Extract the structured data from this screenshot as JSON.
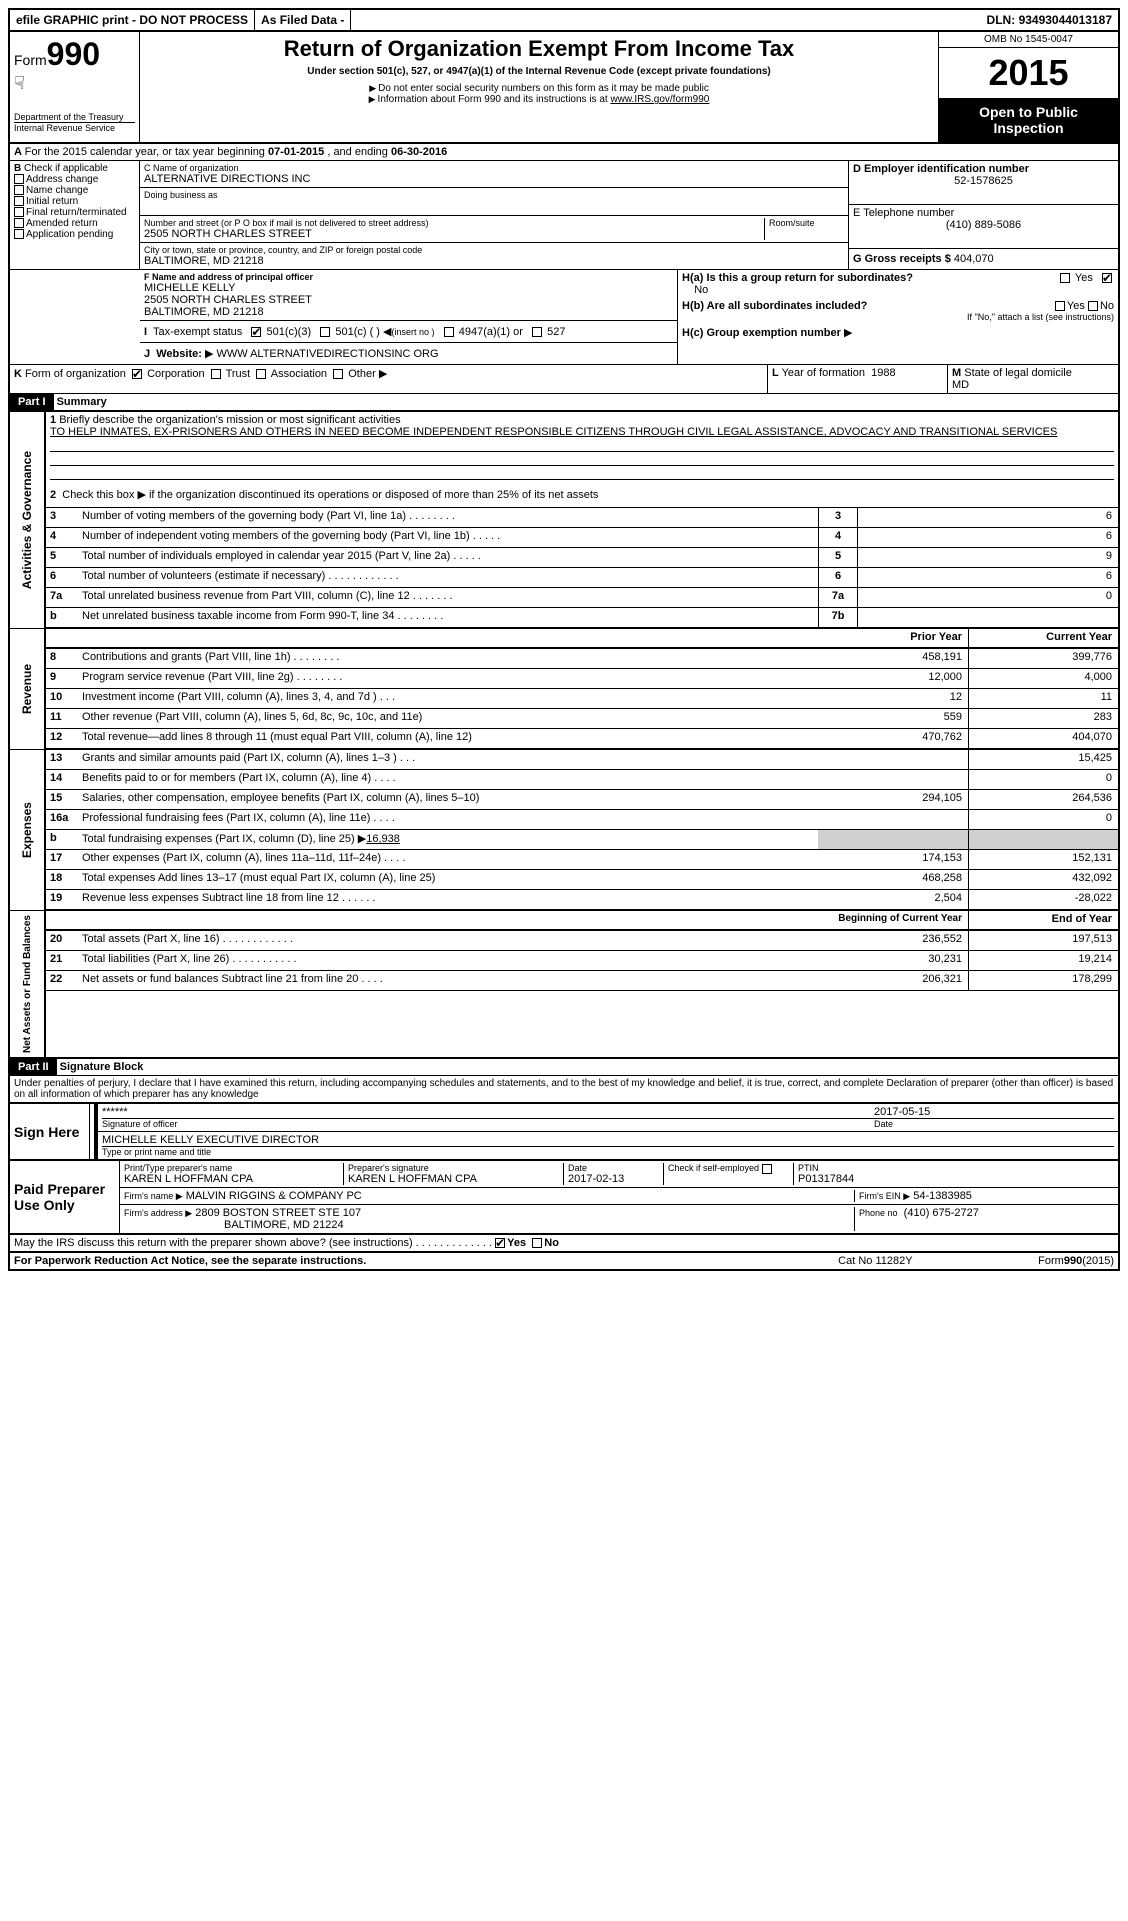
{
  "topbar": {
    "efile": "efile GRAPHIC print - DO NOT PROCESS",
    "asfiled": "As Filed Data -",
    "dln_label": "DLN:",
    "dln": "93493044013187"
  },
  "header": {
    "form_label": "Form",
    "form_number": "990",
    "dept": "Department of the Treasury",
    "irs": "Internal Revenue Service",
    "title": "Return of Organization Exempt From Income Tax",
    "subtitle": "Under section 501(c), 527, or 4947(a)(1) of the Internal Revenue Code (except private foundations)",
    "note1": "Do not enter social security numbers on this form as it may be made public",
    "note2_pre": "Information about Form 990 and its instructions is at ",
    "note2_link": "www.IRS.gov/form990",
    "omb": "OMB No 1545-0047",
    "year": "2015",
    "inspect1": "Open to Public",
    "inspect2": "Inspection"
  },
  "lineA": {
    "prefix": "A",
    "text1": "For the 2015 calendar year, or tax year beginning ",
    "begin": "07-01-2015",
    "text2": ", and ending ",
    "end": "06-30-2016"
  },
  "boxB": {
    "label": "B",
    "check": "Check if applicable",
    "addr": "Address change",
    "name": "Name change",
    "initial": "Initial return",
    "final": "Final return/terminated",
    "amended": "Amended return",
    "pending": "Application pending"
  },
  "boxC": {
    "name_label": "C Name of organization",
    "name": "ALTERNATIVE DIRECTIONS INC",
    "dba_label": "Doing business as",
    "street_label": "Number and street (or P O box if mail is not delivered to street address)",
    "room_label": "Room/suite",
    "street": "2505 NORTH CHARLES STREET",
    "city_label": "City or town, state or province, country, and ZIP or foreign postal code",
    "city": "BALTIMORE, MD  21218"
  },
  "boxD": {
    "label": "D Employer identification number",
    "value": "52-1578625"
  },
  "boxE": {
    "label": "E Telephone number",
    "value": "(410) 889-5086"
  },
  "boxG": {
    "label": "G Gross receipts $",
    "value": "404,070"
  },
  "boxF": {
    "label": "F  Name and address of principal officer",
    "name": "MICHELLE KELLY",
    "street": "2505 NORTH CHARLES STREET",
    "city": "BALTIMORE, MD  21218"
  },
  "boxH": {
    "ha": "H(a)  Is this a group return for subordinates?",
    "ha_no": "No",
    "yes": "Yes",
    "no": "No",
    "hb": "H(b)  Are all subordinates included?",
    "hb_note": "If \"No,\" attach a list  (see instructions)",
    "hc": "H(c)  Group exemption number"
  },
  "lineI": {
    "label": "I",
    "text": "Tax-exempt status",
    "c3": "501(c)(3)",
    "c": "501(c) (   )",
    "insert": "(insert no )",
    "a1": "4947(a)(1) or",
    "s527": "527"
  },
  "lineJ": {
    "label": "J",
    "text": "Website:",
    "value": "WWW ALTERNATIVEDIRECTIONSINC ORG"
  },
  "lineK": {
    "label": "K",
    "text": "Form of organization",
    "corp": "Corporation",
    "trust": "Trust",
    "assoc": "Association",
    "other": "Other"
  },
  "lineL": {
    "label": "L",
    "text": "Year of formation",
    "value": "1988"
  },
  "lineM": {
    "label": "M",
    "text": "State of legal domicile",
    "value": "MD"
  },
  "partI": {
    "header": "Part I",
    "title": "Summary"
  },
  "summary": {
    "activities_label": "Activities & Governance",
    "revenue_label": "Revenue",
    "expenses_label": "Expenses",
    "netassets_label": "Net Assets or Fund Balances",
    "line1_label": "1",
    "line1_text": "Briefly describe the organization's mission or most significant activities",
    "line1_value": "TO HELP INMATES, EX-PRISONERS AND OTHERS IN NEED BECOME INDEPENDENT RESPONSIBLE CITIZENS THROUGH CIVIL LEGAL ASSISTANCE, ADVOCACY AND TRANSITIONAL SERVICES",
    "line2_text": "Check this box ▶      if the organization discontinued its operations or disposed of more than 25% of its net assets",
    "rows_ag": [
      {
        "n": "3",
        "desc": "Number of voting members of the governing body (Part VI, line 1a)   .   .   .   .   .   .   .   .",
        "key": "3",
        "val": "6"
      },
      {
        "n": "4",
        "desc": "Number of independent voting members of the governing body (Part VI, line 1b)   .   .   .   .   .",
        "key": "4",
        "val": "6"
      },
      {
        "n": "5",
        "desc": "Total number of individuals employed in calendar year 2015 (Part V, line 2a)   .   .   .   .   .",
        "key": "5",
        "val": "9"
      },
      {
        "n": "6",
        "desc": "Total number of volunteers (estimate if necessary)   .   .   .   .   .   .   .   .   .   .   .   .",
        "key": "6",
        "val": "6"
      },
      {
        "n": "7a",
        "desc": "Total unrelated business revenue from Part VIII, column (C), line 12   .   .   .   .   .   .   .",
        "key": "7a",
        "val": "0"
      },
      {
        "n": "b",
        "desc": "Net unrelated business taxable income from Form 990-T, line 34   .   .   .   .   .   .   .   .",
        "key": "7b",
        "val": ""
      }
    ],
    "col_prior": "Prior Year",
    "col_current": "Current Year",
    "rows_rev": [
      {
        "n": "8",
        "desc": "Contributions and grants (Part VIII, line 1h)   .   .   .   .   .   .   .   .",
        "p": "458,191",
        "c": "399,776"
      },
      {
        "n": "9",
        "desc": "Program service revenue (Part VIII, line 2g)   .   .   .   .   .   .   .   .",
        "p": "12,000",
        "c": "4,000"
      },
      {
        "n": "10",
        "desc": "Investment income (Part VIII, column (A), lines 3, 4, and 7d )   .   .   .",
        "p": "12",
        "c": "11"
      },
      {
        "n": "11",
        "desc": "Other revenue (Part VIII, column (A), lines 5, 6d, 8c, 9c, 10c, and 11e)",
        "p": "559",
        "c": "283"
      },
      {
        "n": "12",
        "desc": "Total revenue—add lines 8 through 11 (must equal Part VIII, column (A), line 12)",
        "p": "470,762",
        "c": "404,070"
      }
    ],
    "rows_exp": [
      {
        "n": "13",
        "desc": "Grants and similar amounts paid (Part IX, column (A), lines 1–3 )   .   .   .",
        "p": "",
        "c": "15,425"
      },
      {
        "n": "14",
        "desc": "Benefits paid to or for members (Part IX, column (A), line 4)   .   .   .   .",
        "p": "",
        "c": "0"
      },
      {
        "n": "15",
        "desc": "Salaries, other compensation, employee benefits (Part IX, column (A), lines 5–10)",
        "p": "294,105",
        "c": "264,536"
      },
      {
        "n": "16a",
        "desc": "Professional fundraising fees (Part IX, column (A), line 11e)   .   .   .   .",
        "p": "",
        "c": "0"
      },
      {
        "n": "b",
        "desc": "Total fundraising expenses (Part IX, column (D), line 25) ▶",
        "extra": "16,938",
        "p": "shade",
        "c": "shade"
      },
      {
        "n": "17",
        "desc": "Other expenses (Part IX, column (A), lines 11a–11d, 11f–24e)   .   .   .   .",
        "p": "174,153",
        "c": "152,131"
      },
      {
        "n": "18",
        "desc": "Total expenses  Add lines 13–17 (must equal Part IX, column (A), line 25)",
        "p": "468,258",
        "c": "432,092"
      },
      {
        "n": "19",
        "desc": "Revenue less expenses  Subtract line 18 from line 12   .   .   .   .   .   .",
        "p": "2,504",
        "c": "-28,022"
      }
    ],
    "col_begin": "Beginning of Current Year",
    "col_end": "End of Year",
    "rows_na": [
      {
        "n": "20",
        "desc": "Total assets (Part X, line 16)   .   .   .   .   .   .   .   .   .   .   .   .",
        "p": "236,552",
        "c": "197,513"
      },
      {
        "n": "21",
        "desc": "Total liabilities (Part X, line 26)   .   .   .   .   .   .   .   .   .   .   .",
        "p": "30,231",
        "c": "19,214"
      },
      {
        "n": "22",
        "desc": "Net assets or fund balances  Subtract line 21 from line 20   .   .   .   .",
        "p": "206,321",
        "c": "178,299"
      }
    ]
  },
  "partII": {
    "header": "Part II",
    "title": "Signature Block"
  },
  "perjury": "Under penalties of perjury, I declare that I have examined this return, including accompanying schedules and statements, and to the best of my knowledge and belief, it is true, correct, and complete  Declaration of preparer (other than officer) is based on all information of which preparer has any knowledge",
  "sign": {
    "label": "Sign Here",
    "stars": "******",
    "sig_label": "Signature of officer",
    "date": "2017-05-15",
    "date_label": "Date",
    "name": "MICHELLE KELLY EXECUTIVE DIRECTOR",
    "name_label": "Type or print name and title"
  },
  "paid": {
    "label": "Paid Preparer Use Only",
    "prep_name_label": "Print/Type preparer's name",
    "prep_name": "KAREN L HOFFMAN CPA",
    "prep_sig_label": "Preparer's signature",
    "prep_sig": "KAREN L HOFFMAN CPA",
    "date_label": "Date",
    "date": "2017-02-13",
    "check_label": "Check       if self-employed",
    "ptin_label": "PTIN",
    "ptin": "P01317844",
    "firm_name_label": "Firm's name     ▶",
    "firm_name": "MALVIN RIGGINS & COMPANY PC",
    "firm_ein_label": "Firm's EIN ▶",
    "firm_ein": "54-1383985",
    "firm_addr_label": "Firm's address ▶",
    "firm_addr1": "2809 BOSTON STREET STE 107",
    "firm_addr2": "BALTIMORE, MD  21224",
    "phone_label": "Phone no",
    "phone": "(410) 675-2727"
  },
  "discuss": {
    "text": "May the IRS discuss this return with the preparer shown above? (see instructions)   .   .   .   .   .   .   .   .   .   .   .   .   .",
    "yes": "Yes",
    "no": "No"
  },
  "footer": {
    "left": "For Paperwork Reduction Act Notice, see the separate instructions.",
    "mid": "Cat No 11282Y",
    "right": "Form",
    "right2": "990",
    "right3": "(2015)"
  }
}
